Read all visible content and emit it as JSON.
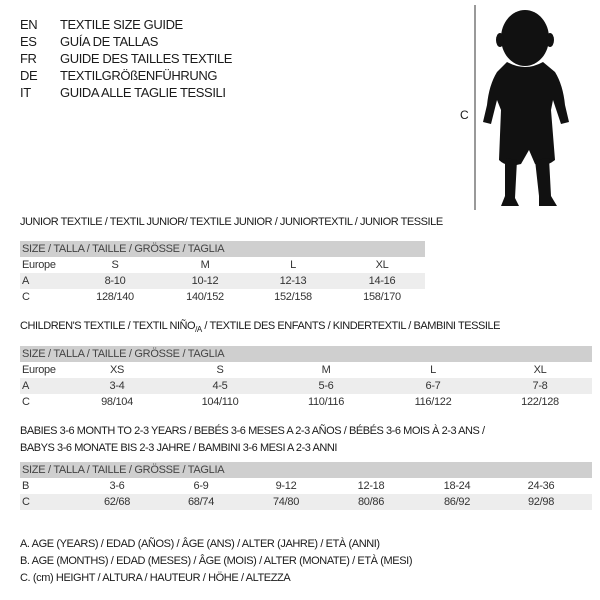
{
  "languages": [
    {
      "code": "EN",
      "title": "TEXTILE SIZE GUIDE"
    },
    {
      "code": "ES",
      "title": "GUÍA DE TALLAS"
    },
    {
      "code": "FR",
      "title": "GUIDE DES TAILLES TEXTILE"
    },
    {
      "code": "DE",
      "title": "TEXTILGRÖßENFÜHRUNG"
    },
    {
      "code": "IT",
      "title": "GUIDA ALLE TAGLIE TESSILI"
    }
  ],
  "figure": {
    "label": "C",
    "icon": "child-silhouette"
  },
  "junior": {
    "title": "JUNIOR TEXTILE / TEXTIL JUNIOR/ TEXTILE JUNIOR / JUNIORTEXTIL / JUNIOR TESSILE",
    "header": "SIZE / TALLA / TAILLE / GRÖSSE / TAGLIA",
    "rows": [
      {
        "label": "Europe",
        "values": [
          "S",
          "M",
          "L",
          "XL"
        ]
      },
      {
        "label": "A",
        "values": [
          "8-10",
          "10-12",
          "12-13",
          "14-16"
        ]
      },
      {
        "label": "C",
        "values": [
          "128/140",
          "140/152",
          "152/158",
          "158/170"
        ]
      }
    ]
  },
  "children": {
    "title_pre": "CHILDREN'S TEXTILE / TEXTIL NIÑO",
    "title_sub": "/A",
    "title_post": " / TEXTILE DES ENFANTS / KINDERTEXTIL / BAMBINI TESSILE",
    "header": "SIZE / TALLA / TAILLE / GRÖSSE / TAGLIA",
    "rows": [
      {
        "label": "Europe",
        "values": [
          "XS",
          "S",
          "M",
          "L",
          "XL"
        ]
      },
      {
        "label": "A",
        "values": [
          "3-4",
          "4-5",
          "5-6",
          "6-7",
          "7-8"
        ]
      },
      {
        "label": "C",
        "values": [
          "98/104",
          "104/110",
          "110/116",
          "116/122",
          "122/128"
        ]
      }
    ]
  },
  "babies": {
    "title_line1": "BABIES 3-6 MONTH TO 2-3 YEARS / BEBÉS 3-6 MESES A 2-3 AÑOS / BÉBÉS 3-6 MOIS À 2-3 ANS /",
    "title_line2": "BABYS 3-6 MONATE BIS 2-3 JAHRE / BAMBINI 3-6 MESI A 2-3 ANNI",
    "header": "SIZE / TALLA / TAILLE / GRÖSSE / TAGLIA",
    "rows": [
      {
        "label": "B",
        "values": [
          "3-6",
          "6-9",
          "9-12",
          "12-18",
          "18-24",
          "24-36"
        ]
      },
      {
        "label": "C",
        "values": [
          "62/68",
          "68/74",
          "74/80",
          "80/86",
          "86/92",
          "92/98"
        ]
      }
    ]
  },
  "legend": [
    "A. AGE (YEARS) / EDAD (AÑOS) / ÂGE (ANS) / ALTER (JAHRE) / ETÀ (ANNI)",
    "B. AGE (MONTHS) / EDAD (MESES) / ÂGE (MOIS) / ALTER (MONATE) / ETÀ (MESI)",
    "C. (cm) HEIGHT / ALTURA / HAUTEUR / HÖHE / ALTEZZA"
  ]
}
